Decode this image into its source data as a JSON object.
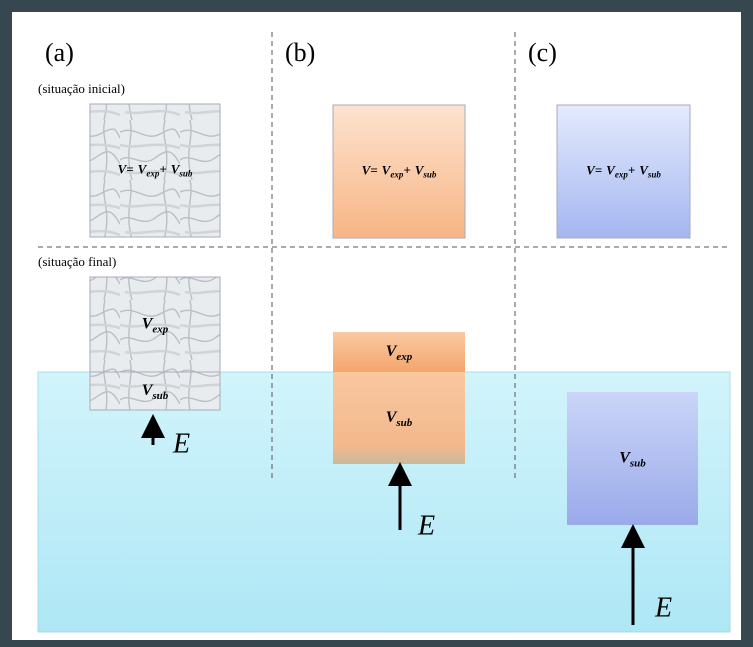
{
  "states": {
    "initial": "(situação inicial)",
    "final": "(situação final)"
  },
  "panels": [
    {
      "label": "(a)",
      "initial_formula": {
        "lhs": "V=",
        "v1": "V",
        "s1": "exp",
        "plus": "+",
        "v2": "V",
        "s2": "sub"
      },
      "final_parts": [
        {
          "v": "V",
          "s": "exp"
        },
        {
          "v": "V",
          "s": "sub"
        }
      ],
      "force": "E"
    },
    {
      "label": "(b)",
      "initial_formula": {
        "lhs": "V=",
        "v1": "V",
        "s1": "exp",
        "plus": "+",
        "v2": "V",
        "s2": "sub"
      },
      "final_parts": [
        {
          "v": "V",
          "s": "exp"
        },
        {
          "v": "V",
          "s": "sub"
        }
      ],
      "force": "E"
    },
    {
      "label": "(c)",
      "initial_formula": {
        "lhs": "V=",
        "v1": "V",
        "s1": "exp",
        "plus": "+",
        "v2": "V",
        "s2": "sub"
      },
      "final_parts": [
        {
          "v": "V",
          "s": "sub"
        }
      ],
      "force": "E"
    }
  ]
}
